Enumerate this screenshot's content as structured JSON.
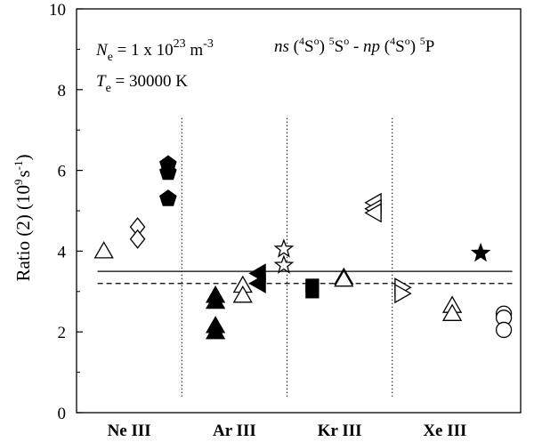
{
  "chart_data": {
    "type": "scatter",
    "title": "",
    "ylabel": "Ratio (2)  (10",
    "ylabel_sup": "9",
    "ylabel_unit": "s",
    "ylabel_unit_sup": "-1",
    "ylabel_close": ")",
    "ylim": [
      0,
      10
    ],
    "yticks": [
      0,
      2,
      4,
      6,
      8,
      10
    ],
    "categories": [
      "Ne III",
      "Ar III",
      "Kr III",
      "Xe III"
    ],
    "separators": [
      1.5,
      2.5,
      3.5
    ],
    "annotations": {
      "ne_prefix": "N",
      "ne_sub": "e",
      "ne_value": " = 1 x 10",
      "ne_exp": "23",
      "ne_unit": " m",
      "ne_unit_exp": "-3",
      "te_prefix": "T",
      "te_sub": "e",
      "te_value": " = 30000 K",
      "transition": {
        "ns": "ns",
        "open1": " (",
        "sup1": "4",
        "s1": "S",
        "o1": "o",
        "close1": ") ",
        "sup2": "5",
        "s2": "S",
        "o2": "o",
        "dash": " - ",
        "np": "np",
        "open3": " (",
        "sup3": "4",
        "s3": "S",
        "o3": "o",
        "close3": ") ",
        "sup4": "5",
        "p4": "P"
      }
    },
    "reference_lines": [
      {
        "style": "solid",
        "y": 3.5
      },
      {
        "style": "dashed",
        "y": 3.2
      }
    ],
    "points": [
      {
        "x": 0.76,
        "y": 4.0,
        "marker": "triangle-up",
        "filled": false
      },
      {
        "x": 1.08,
        "y": 4.6,
        "marker": "diamond",
        "filled": false
      },
      {
        "x": 1.08,
        "y": 4.3,
        "marker": "diamond",
        "filled": false
      },
      {
        "x": 1.37,
        "y": 6.15,
        "marker": "pentagon",
        "filled": true
      },
      {
        "x": 1.37,
        "y": 5.95,
        "marker": "pentagon",
        "filled": true
      },
      {
        "x": 1.37,
        "y": 5.3,
        "marker": "pentagon",
        "filled": true
      },
      {
        "x": 1.82,
        "y": 2.9,
        "marker": "triangle-up",
        "filled": true
      },
      {
        "x": 1.82,
        "y": 2.75,
        "marker": "triangle-up",
        "filled": true
      },
      {
        "x": 1.82,
        "y": 2.15,
        "marker": "triangle-up",
        "filled": true
      },
      {
        "x": 1.82,
        "y": 2.0,
        "marker": "triangle-up",
        "filled": true
      },
      {
        "x": 2.08,
        "y": 3.15,
        "marker": "triangle-up",
        "filled": false
      },
      {
        "x": 2.08,
        "y": 2.9,
        "marker": "triangle-up",
        "filled": false
      },
      {
        "x": 2.23,
        "y": 3.45,
        "marker": "triangle-left",
        "filled": true
      },
      {
        "x": 2.23,
        "y": 3.2,
        "marker": "triangle-left",
        "filled": true
      },
      {
        "x": 2.47,
        "y": 4.05,
        "marker": "star",
        "filled": false
      },
      {
        "x": 2.47,
        "y": 3.65,
        "marker": "star",
        "filled": false
      },
      {
        "x": 2.74,
        "y": 3.15,
        "marker": "square",
        "filled": true
      },
      {
        "x": 2.74,
        "y": 3.0,
        "marker": "square",
        "filled": true
      },
      {
        "x": 3.04,
        "y": 3.35,
        "marker": "triangle-up",
        "filled": false
      },
      {
        "x": 3.04,
        "y": 3.3,
        "marker": "triangle-up",
        "filled": false
      },
      {
        "x": 3.33,
        "y": 5.2,
        "marker": "triangle-left",
        "filled": false
      },
      {
        "x": 3.33,
        "y": 5.05,
        "marker": "triangle-left",
        "filled": false
      },
      {
        "x": 3.33,
        "y": 4.95,
        "marker": "triangle-left",
        "filled": false
      },
      {
        "x": 3.59,
        "y": 3.1,
        "marker": "triangle-right",
        "filled": false
      },
      {
        "x": 3.59,
        "y": 2.95,
        "marker": "triangle-right",
        "filled": false
      },
      {
        "x": 4.07,
        "y": 2.65,
        "marker": "triangle-up",
        "filled": false
      },
      {
        "x": 4.07,
        "y": 2.45,
        "marker": "triangle-up",
        "filled": false
      },
      {
        "x": 4.34,
        "y": 3.95,
        "marker": "star",
        "filled": true
      },
      {
        "x": 4.56,
        "y": 2.45,
        "marker": "circle",
        "filled": false
      },
      {
        "x": 4.56,
        "y": 2.35,
        "marker": "circle",
        "filled": false
      },
      {
        "x": 4.56,
        "y": 2.05,
        "marker": "circle",
        "filled": false
      }
    ]
  }
}
